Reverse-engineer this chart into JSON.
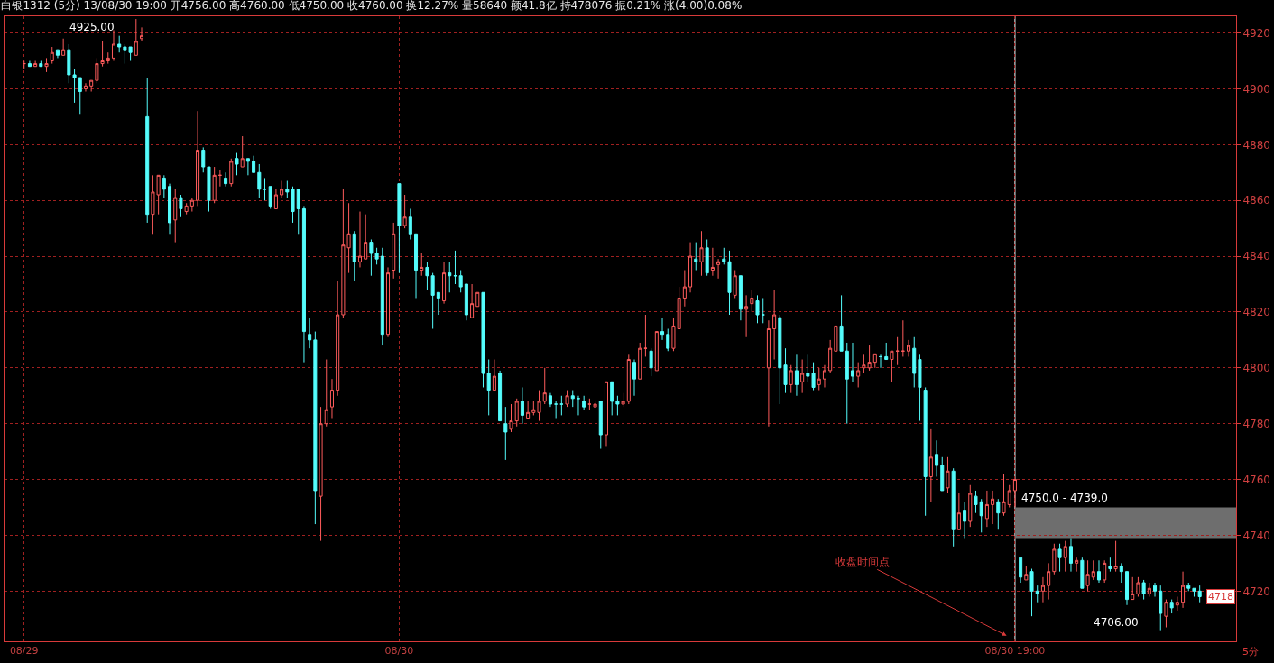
{
  "chart_data": {
    "type": "candlestick",
    "title": "白银1312 (5分) 13/08/30 19:00 开4756.00 高4760.00 低4750.00 收4760.00 换12.27% 量58640 额41.8亿 持478076 振0.21% 涨(4.00)0.08%",
    "categories": [
      "08/29",
      null,
      null,
      null,
      null,
      null,
      null,
      null,
      null,
      null,
      null,
      null,
      null,
      null,
      null,
      null,
      null,
      null,
      null,
      null,
      null,
      null,
      null,
      null,
      null,
      null,
      null,
      null,
      null,
      null,
      null,
      null,
      null,
      null,
      null,
      null,
      null,
      null,
      null,
      null,
      null,
      null,
      null,
      null,
      null,
      null,
      null,
      null,
      null,
      null,
      null,
      null,
      null,
      null,
      null,
      null,
      null,
      null,
      null,
      null,
      null,
      null,
      null,
      null,
      null,
      null,
      null,
      "08/30",
      null,
      null,
      null,
      null,
      null,
      null,
      null,
      null,
      null,
      null,
      null,
      null,
      null,
      null,
      null,
      null,
      null,
      null,
      null,
      null,
      null,
      null,
      null,
      null,
      null,
      null,
      null,
      null,
      null,
      null,
      null,
      null,
      null,
      null,
      null,
      null,
      null,
      null,
      null,
      null,
      null,
      null,
      null,
      null,
      null,
      null,
      null,
      null,
      null,
      null,
      null,
      null,
      null,
      null,
      null,
      null,
      null,
      null,
      null,
      null,
      null,
      null,
      null,
      null,
      null,
      null,
      null,
      null,
      null,
      null,
      null,
      null,
      null,
      null,
      null,
      null,
      null,
      null,
      null,
      null,
      null,
      null,
      null,
      null,
      null,
      null,
      null,
      null,
      null,
      null,
      null,
      null,
      null,
      null,
      null,
      null,
      null,
      null,
      null,
      null,
      null,
      null,
      null,
      null,
      null,
      null,
      null,
      null,
      null,
      "08/30 19:00",
      null,
      null,
      null,
      null,
      null,
      null,
      null,
      null,
      null,
      null,
      null,
      null,
      null,
      null,
      null,
      null,
      null,
      null,
      null,
      null,
      null,
      null,
      null,
      null,
      null,
      null,
      null,
      null,
      null,
      null,
      null,
      null,
      null
    ],
    "ohlc": [
      [
        4909,
        4910,
        4907,
        4909
      ],
      [
        4909,
        4910,
        4908,
        4908
      ],
      [
        4908,
        4910,
        4908,
        4909
      ],
      [
        4909,
        4910,
        4908,
        4908
      ],
      [
        4908,
        4911,
        4906,
        4909
      ],
      [
        4910,
        4915,
        4909,
        4913
      ],
      [
        4914,
        4914,
        4911,
        4912
      ],
      [
        4912,
        4918,
        4912,
        4914
      ],
      [
        4914,
        4916,
        4902,
        4905
      ],
      [
        4905,
        4907,
        4895,
        4904
      ],
      [
        4904,
        4904,
        4891,
        4899
      ],
      [
        4900,
        4902,
        4899,
        4901
      ],
      [
        4901,
        4903,
        4899,
        4903
      ],
      [
        4903,
        4911,
        4902,
        4909
      ],
      [
        4909,
        4917,
        4908,
        4910
      ],
      [
        4910,
        4913,
        4909,
        4911
      ],
      [
        4911,
        4921,
        4910,
        4916
      ],
      [
        4916,
        4919,
        4913,
        4915
      ],
      [
        4915,
        4916,
        4909,
        4914
      ],
      [
        4915,
        4915,
        4910,
        4913
      ],
      [
        4912,
        4925,
        4912,
        4917
      ],
      [
        4918,
        4922,
        4917,
        4919
      ],
      [
        4890,
        4904,
        4852,
        4855
      ],
      [
        4855,
        4869,
        4848,
        4863
      ],
      [
        4862,
        4869,
        4855,
        4869
      ],
      [
        4868,
        4869,
        4861,
        4864
      ],
      [
        4865,
        4866,
        4848,
        4852
      ],
      [
        4853,
        4864,
        4845,
        4861
      ],
      [
        4861,
        4862,
        4854,
        4857
      ],
      [
        4856,
        4859,
        4855,
        4858
      ],
      [
        4858,
        4861,
        4856,
        4860
      ],
      [
        4860,
        4892,
        4858,
        4878
      ],
      [
        4878,
        4879,
        4870,
        4872
      ],
      [
        4872,
        4872,
        4856,
        4860
      ],
      [
        4860,
        4872,
        4859,
        4869
      ],
      [
        4869,
        4871,
        4865,
        4869
      ],
      [
        4868,
        4870,
        4865,
        4866
      ],
      [
        4866,
        4875,
        4865,
        4874
      ],
      [
        4875,
        4877,
        4869,
        4873
      ],
      [
        4872,
        4883,
        4872,
        4875
      ],
      [
        4875,
        4875,
        4869,
        4874
      ],
      [
        4874,
        4876,
        4870,
        4870
      ],
      [
        4870,
        4873,
        4861,
        4864
      ],
      [
        4864,
        4868,
        4860,
        4864
      ],
      [
        4865,
        4865,
        4857,
        4858
      ],
      [
        4857,
        4864,
        4857,
        4862
      ],
      [
        4862,
        4867,
        4861,
        4864
      ],
      [
        4864,
        4867,
        4861,
        4863
      ],
      [
        4864,
        4865,
        4852,
        4856
      ],
      [
        4864,
        4864,
        4848,
        4857
      ],
      [
        4857,
        4858,
        4802,
        4813
      ],
      [
        4812,
        4818,
        4807,
        4810
      ],
      [
        4810,
        4813,
        4744,
        4756
      ],
      [
        4754,
        4786,
        4738,
        4780
      ],
      [
        4780,
        4803,
        4779,
        4785
      ],
      [
        4786,
        4796,
        4782,
        4792
      ],
      [
        4792,
        4831,
        4790,
        4819
      ],
      [
        4819,
        4864,
        4818,
        4844
      ],
      [
        4843,
        4859,
        4834,
        4848
      ],
      [
        4848,
        4849,
        4831,
        4838
      ],
      [
        4838,
        4856,
        4836,
        4840
      ],
      [
        4839,
        4855,
        4839,
        4845
      ],
      [
        4845,
        4846,
        4833,
        4841
      ],
      [
        4841,
        4843,
        4837,
        4839
      ],
      [
        4840,
        4843,
        4808,
        4812
      ],
      [
        4812,
        4836,
        4811,
        4834
      ],
      [
        4835,
        4852,
        4832,
        4848
      ],
      [
        4866,
        4866,
        4834,
        4851
      ],
      [
        4851,
        4862,
        4850,
        4854
      ],
      [
        4854,
        4857,
        4846,
        4848
      ],
      [
        4848,
        4848,
        4825,
        4835
      ],
      [
        4835,
        4841,
        4833,
        4836
      ],
      [
        4836,
        4838,
        4828,
        4833
      ],
      [
        4833,
        4834,
        4814,
        4826
      ],
      [
        4827,
        4827,
        4819,
        4825
      ],
      [
        4824,
        4838,
        4823,
        4834
      ],
      [
        4834,
        4838,
        4827,
        4833
      ],
      [
        4833,
        4842,
        4830,
        4833
      ],
      [
        4833,
        4835,
        4827,
        4829
      ],
      [
        4830,
        4830,
        4817,
        4819
      ],
      [
        4818,
        4830,
        4818,
        4823
      ],
      [
        4822,
        4827,
        4822,
        4827
      ],
      [
        4827,
        4827,
        4793,
        4798
      ],
      [
        4798,
        4803,
        4783,
        4792
      ],
      [
        4792,
        4803,
        4792,
        4797
      ],
      [
        4798,
        4799,
        4781,
        4781
      ],
      [
        4780,
        4786,
        4767,
        4777
      ],
      [
        4778,
        4787,
        4777,
        4781
      ],
      [
        4781,
        4789,
        4779,
        4788
      ],
      [
        4788,
        4793,
        4780,
        4783
      ],
      [
        4782,
        4788,
        4782,
        4784
      ],
      [
        4784,
        4788,
        4783,
        4785
      ],
      [
        4784,
        4792,
        4781,
        4788
      ],
      [
        4788,
        4800,
        4787,
        4791
      ],
      [
        4790,
        4791,
        4786,
        4787
      ],
      [
        4787,
        4788,
        4782,
        4787
      ],
      [
        4787,
        4790,
        4783,
        4787
      ],
      [
        4787,
        4792,
        4786,
        4790
      ],
      [
        4790,
        4792,
        4786,
        4789
      ],
      [
        4789,
        4790,
        4783,
        4789
      ],
      [
        4788,
        4790,
        4785,
        4786
      ],
      [
        4787,
        4789,
        4785,
        4787
      ],
      [
        4786,
        4788,
        4786,
        4787
      ],
      [
        4788,
        4788,
        4771,
        4776
      ],
      [
        4776,
        4795,
        4772,
        4795
      ],
      [
        4795,
        4795,
        4783,
        4788
      ],
      [
        4788,
        4790,
        4783,
        4787
      ],
      [
        4787,
        4791,
        4786,
        4788
      ],
      [
        4788,
        4805,
        4787,
        4803
      ],
      [
        4802,
        4803,
        4790,
        4796
      ],
      [
        4796,
        4809,
        4796,
        4807
      ],
      [
        4807,
        4819,
        4804,
        4807
      ],
      [
        4806,
        4807,
        4797,
        4800
      ],
      [
        4799,
        4813,
        4799,
        4813
      ],
      [
        4813,
        4818,
        4810,
        4812
      ],
      [
        4812,
        4814,
        4806,
        4807
      ],
      [
        4807,
        4818,
        4806,
        4815
      ],
      [
        4814,
        4829,
        4814,
        4825
      ],
      [
        4825,
        4835,
        4822,
        4829
      ],
      [
        4829,
        4845,
        4827,
        4840
      ],
      [
        4839,
        4845,
        4835,
        4838
      ],
      [
        4838,
        4849,
        4833,
        4843
      ],
      [
        4843,
        4846,
        4833,
        4834
      ],
      [
        4835,
        4843,
        4833,
        4836
      ],
      [
        4837,
        4839,
        4832,
        4838
      ],
      [
        4839,
        4843,
        4837,
        4838
      ],
      [
        4838,
        4842,
        4819,
        4827
      ],
      [
        4826,
        4835,
        4825,
        4833
      ],
      [
        4833,
        4833,
        4817,
        4821
      ],
      [
        4821,
        4826,
        4811,
        4822
      ],
      [
        4823,
        4828,
        4820,
        4825
      ],
      [
        4824,
        4826,
        4816,
        4819
      ],
      [
        4819,
        4825,
        4816,
        4819
      ],
      [
        4800,
        4817,
        4779,
        4814
      ],
      [
        4814,
        4828,
        4803,
        4819
      ],
      [
        4818,
        4819,
        4787,
        4800
      ],
      [
        4801,
        4807,
        4791,
        4794
      ],
      [
        4794,
        4801,
        4791,
        4799
      ],
      [
        4799,
        4805,
        4790,
        4794
      ],
      [
        4795,
        4803,
        4791,
        4798
      ],
      [
        4798,
        4805,
        4795,
        4797
      ],
      [
        4798,
        4802,
        4792,
        4793
      ],
      [
        4794,
        4800,
        4792,
        4796
      ],
      [
        4796,
        4801,
        4793,
        4799
      ],
      [
        4799,
        4810,
        4798,
        4807
      ],
      [
        4806,
        4815,
        4806,
        4815
      ],
      [
        4815,
        4826,
        4806,
        4806
      ],
      [
        4806,
        4809,
        4780,
        4796
      ],
      [
        4799,
        4809,
        4795,
        4797
      ],
      [
        4797,
        4802,
        4793,
        4799
      ],
      [
        4800,
        4805,
        4798,
        4801
      ],
      [
        4800,
        4808,
        4799,
        4802
      ],
      [
        4802,
        4805,
        4800,
        4805
      ],
      [
        4804,
        4805,
        4800,
        4804
      ],
      [
        4804,
        4809,
        4803,
        4803
      ],
      [
        4803,
        4806,
        4795,
        4806
      ],
      [
        4806,
        4811,
        4801,
        4806
      ],
      [
        4806,
        4817,
        4804,
        4806
      ],
      [
        4806,
        4810,
        4804,
        4808
      ],
      [
        4807,
        4811,
        4793,
        4798
      ],
      [
        4803,
        4805,
        4781,
        4793
      ],
      [
        4792,
        4793,
        4747,
        4761
      ],
      [
        4761,
        4778,
        4752,
        4768
      ],
      [
        4769,
        4774,
        4761,
        4765
      ],
      [
        4765,
        4768,
        4756,
        4756
      ],
      [
        4757,
        4768,
        4755,
        4763
      ],
      [
        4763,
        4764,
        4736,
        4742
      ],
      [
        4742,
        4755,
        4742,
        4748
      ],
      [
        4749,
        4752,
        4739,
        4745
      ],
      [
        4745,
        4758,
        4743,
        4755
      ],
      [
        4754,
        4756,
        4748,
        4751
      ],
      [
        4752,
        4753,
        4741,
        4747
      ],
      [
        4746,
        4756,
        4743,
        4751
      ],
      [
        4751,
        4756,
        4744,
        4753
      ],
      [
        4752,
        4753,
        4742,
        4748
      ],
      [
        4748,
        4762,
        4747,
        4752
      ],
      [
        4751,
        4758,
        4750,
        4756
      ],
      [
        4756,
        4760,
        4750,
        4760
      ],
      [
        4732,
        4732,
        4723,
        4725
      ],
      [
        4724,
        4729,
        4724,
        4726
      ],
      [
        4727,
        4728,
        4711,
        4720
      ],
      [
        4720,
        4722,
        4716,
        4719
      ],
      [
        4720,
        4725,
        4716,
        4722
      ],
      [
        4722,
        4730,
        4717,
        4727
      ],
      [
        4727,
        4737,
        4726,
        4735
      ],
      [
        4735,
        4737,
        4727,
        4732
      ],
      [
        4732,
        4738,
        4727,
        4736
      ],
      [
        4736,
        4739,
        4727,
        4730
      ],
      [
        4730,
        4732,
        4727,
        4731
      ],
      [
        4731,
        4732,
        4721,
        4721
      ],
      [
        4722,
        4731,
        4720,
        4726
      ],
      [
        4725,
        4731,
        4724,
        4727
      ],
      [
        4727,
        4731,
        4723,
        4724
      ],
      [
        4724,
        4731,
        4723,
        4730
      ],
      [
        4729,
        4732,
        4727,
        4728
      ],
      [
        4728,
        4738,
        4727,
        4729
      ],
      [
        4729,
        4730,
        4723,
        4727
      ],
      [
        4727,
        4727,
        4715,
        4717
      ],
      [
        4717,
        4725,
        4717,
        4719
      ],
      [
        4719,
        4725,
        4718,
        4723
      ],
      [
        4723,
        4724,
        4717,
        4719
      ],
      [
        4719,
        4723,
        4718,
        4721
      ],
      [
        4722,
        4723,
        4718,
        4720
      ],
      [
        4720,
        4722,
        4706,
        4712
      ],
      [
        4711,
        4717,
        4707,
        4716
      ],
      [
        4716,
        4717,
        4712,
        4714
      ],
      [
        4715,
        4718,
        4713,
        4716
      ],
      [
        4716,
        4727,
        4714,
        4722
      ],
      [
        4722,
        4723,
        4720,
        4721
      ],
      [
        4721,
        4721,
        4718,
        4720
      ],
      [
        4720,
        4722,
        4716,
        4718
      ]
    ],
    "ylim": [
      4702,
      4926
    ],
    "yticks": [
      4720,
      4740,
      4760,
      4780,
      4800,
      4820,
      4840,
      4860,
      4880,
      4900,
      4920
    ],
    "grid": true,
    "ref_lines": [
      {
        "axis": "x",
        "value": "08/30 19:00",
        "color": "#ffffff"
      }
    ],
    "bands": [
      {
        "axis": "y",
        "from": 4739,
        "to": 4750,
        "label": "4750.0 - 4739.0",
        "color": "#6e6e6e"
      }
    ],
    "annotations": [
      "收盘时间点",
      "5分",
      "4718",
      "4925.00",
      "4706.00"
    ]
  }
}
